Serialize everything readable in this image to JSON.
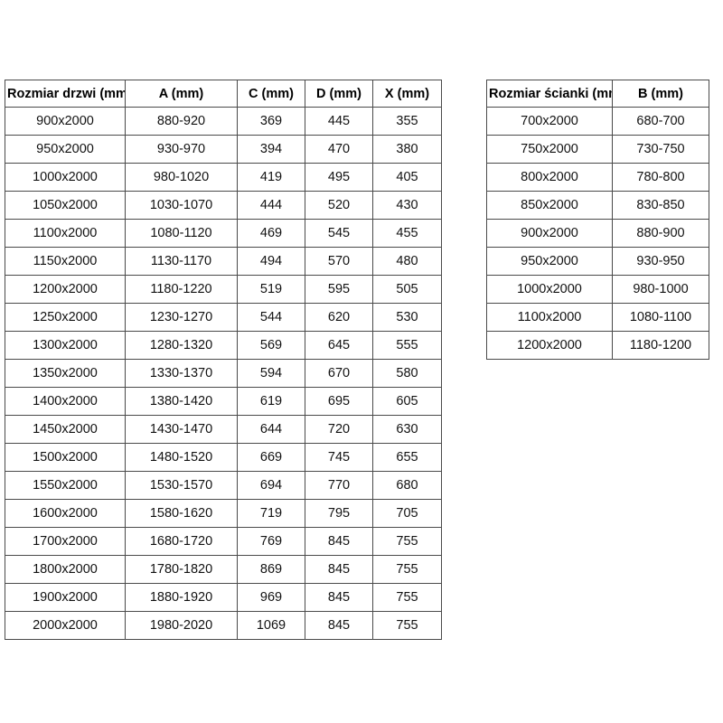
{
  "page": {
    "background_color": "#ffffff",
    "table_border_color": "#4a4a4a",
    "text_color": "#121212"
  },
  "door_table": {
    "headers": [
      "Rozmiar drzwi (mm)",
      "A (mm)",
      "C (mm)",
      "D (mm)",
      "X (mm)"
    ],
    "rows": [
      [
        "900x2000",
        "880-920",
        "369",
        "445",
        "355"
      ],
      [
        "950x2000",
        "930-970",
        "394",
        "470",
        "380"
      ],
      [
        "1000x2000",
        "980-1020",
        "419",
        "495",
        "405"
      ],
      [
        "1050x2000",
        "1030-1070",
        "444",
        "520",
        "430"
      ],
      [
        "1100x2000",
        "1080-1120",
        "469",
        "545",
        "455"
      ],
      [
        "1150x2000",
        "1130-1170",
        "494",
        "570",
        "480"
      ],
      [
        "1200x2000",
        "1180-1220",
        "519",
        "595",
        "505"
      ],
      [
        "1250x2000",
        "1230-1270",
        "544",
        "620",
        "530"
      ],
      [
        "1300x2000",
        "1280-1320",
        "569",
        "645",
        "555"
      ],
      [
        "1350x2000",
        "1330-1370",
        "594",
        "670",
        "580"
      ],
      [
        "1400x2000",
        "1380-1420",
        "619",
        "695",
        "605"
      ],
      [
        "1450x2000",
        "1430-1470",
        "644",
        "720",
        "630"
      ],
      [
        "1500x2000",
        "1480-1520",
        "669",
        "745",
        "655"
      ],
      [
        "1550x2000",
        "1530-1570",
        "694",
        "770",
        "680"
      ],
      [
        "1600x2000",
        "1580-1620",
        "719",
        "795",
        "705"
      ],
      [
        "1700x2000",
        "1680-1720",
        "769",
        "845",
        "755"
      ],
      [
        "1800x2000",
        "1780-1820",
        "869",
        "845",
        "755"
      ],
      [
        "1900x2000",
        "1880-1920",
        "969",
        "845",
        "755"
      ],
      [
        "2000x2000",
        "1980-2020",
        "1069",
        "845",
        "755"
      ]
    ]
  },
  "wall_table": {
    "headers": [
      "Rozmiar ścianki (mm)",
      "B (mm)"
    ],
    "rows": [
      [
        "700x2000",
        "680-700"
      ],
      [
        "750x2000",
        "730-750"
      ],
      [
        "800x2000",
        "780-800"
      ],
      [
        "850x2000",
        "830-850"
      ],
      [
        "900x2000",
        "880-900"
      ],
      [
        "950x2000",
        "930-950"
      ],
      [
        "1000x2000",
        "980-1000"
      ],
      [
        "1100x2000",
        "1080-1100"
      ],
      [
        "1200x2000",
        "1180-1200"
      ]
    ]
  }
}
